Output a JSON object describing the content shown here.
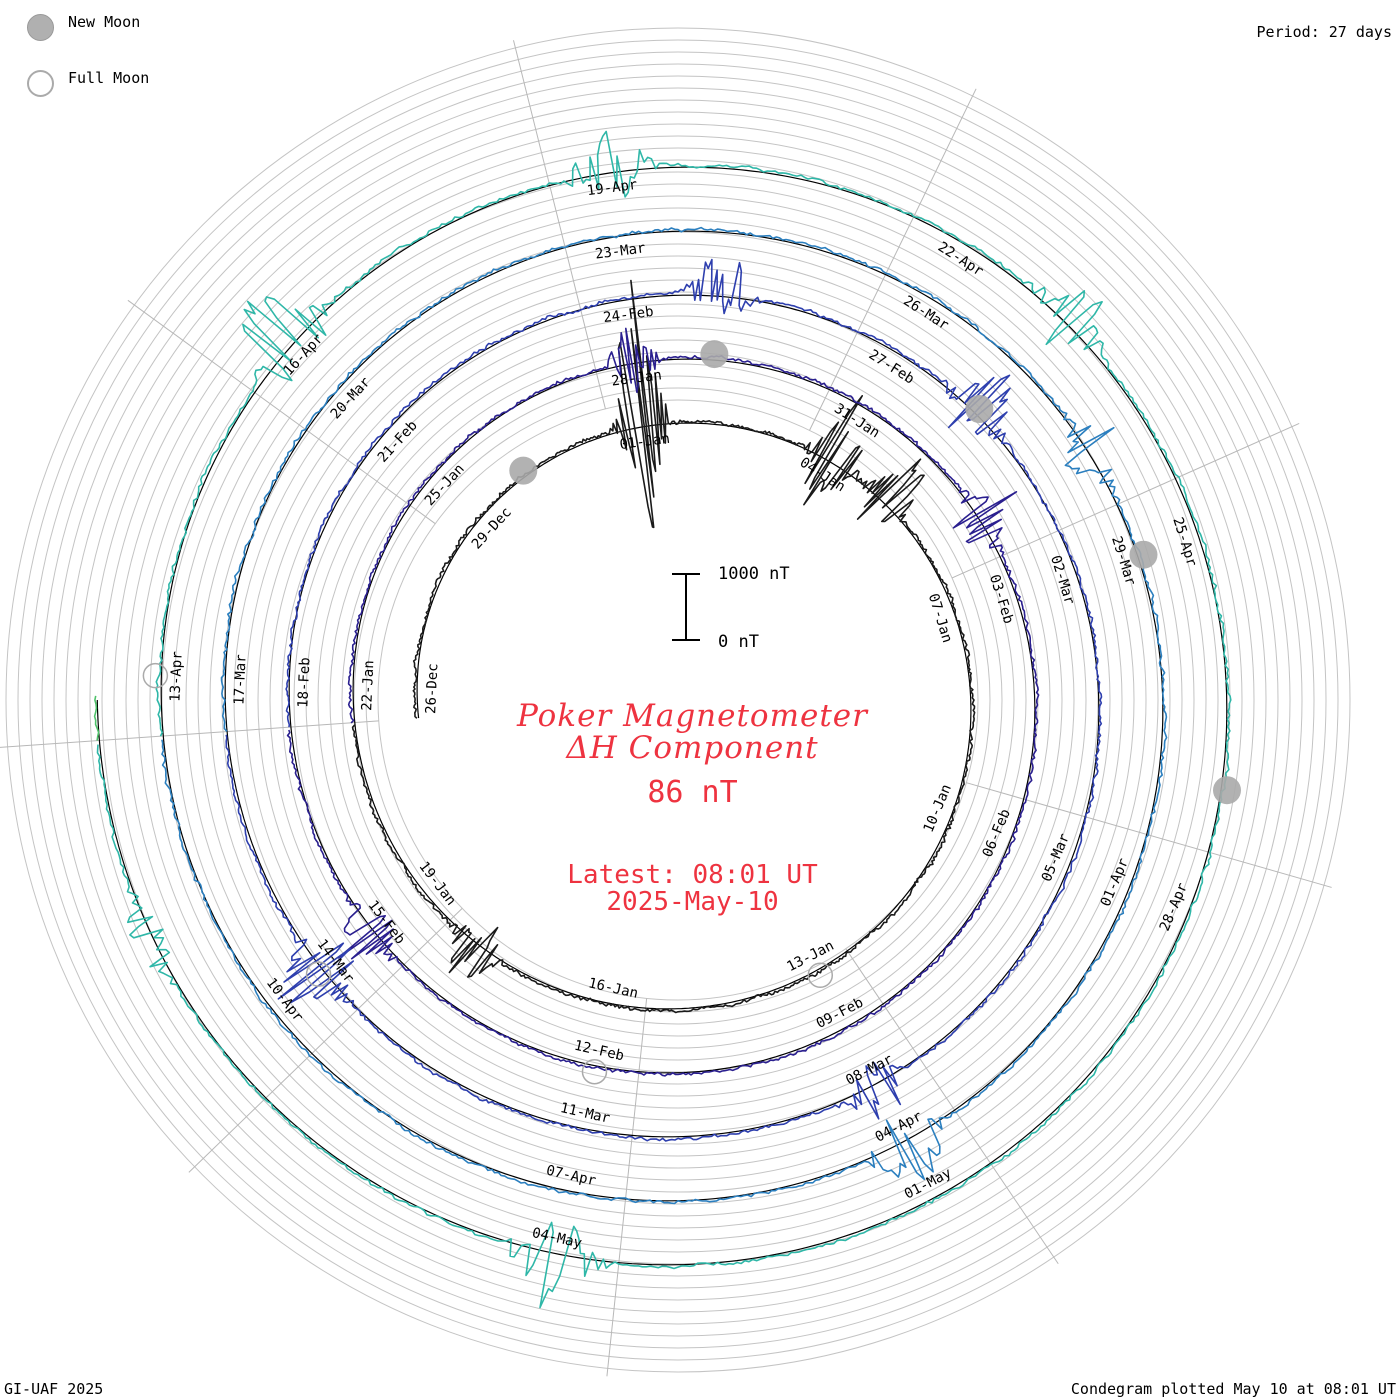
{
  "header": {
    "period": "Period: 27 days",
    "legend": {
      "new_moon": "New Moon",
      "full_moon": "Full Moon"
    }
  },
  "footer": {
    "credit": "GI-UAF 2025",
    "plotted": "Condegram plotted May 10 at 08:01 UT"
  },
  "center": {
    "title_line1": "Poker Magnetometer",
    "title_line2": "ΔH Component",
    "value": "86 nT",
    "latest": "Latest: 08:01 UT",
    "date": "2025-May-10"
  },
  "scale_bar": {
    "top_label": "1000 nT",
    "bottom_label": "0 nT"
  },
  "chart_data": {
    "type": "line",
    "title": "Poker Magnetometer ΔH Component",
    "projection": "spiral condegram",
    "period_days": 27,
    "start": "2024-12-26",
    "end": "2025-05-10 08:01 UT",
    "current_value_nT": 86,
    "scale_bar_nT": [
      0,
      1000
    ],
    "grid": true,
    "series_colors": [
      "#1a1a1a",
      "#2a1f8f",
      "#2e3fae",
      "#2b7fbf",
      "#2fb7a8",
      "#4ec26a",
      "#8ec830",
      "#c8b62a",
      "#d8921e",
      "#c8401e"
    ],
    "date_labels": [
      "26-Dec",
      "29-Dec",
      "01-Jan",
      "04-Jan",
      "07-Jan",
      "10-Jan",
      "13-Jan",
      "16-Jan",
      "19-Jan",
      "22-Jan",
      "25-Jan",
      "28-Jan",
      "31-Jan",
      "03-Feb",
      "06-Feb",
      "09-Feb",
      "12-Feb",
      "15-Feb",
      "18-Feb",
      "21-Feb",
      "24-Feb",
      "27-Feb",
      "02-Mar",
      "05-Mar",
      "08-Mar",
      "11-Mar",
      "14-Mar",
      "17-Mar",
      "20-Mar",
      "23-Mar",
      "26-Mar",
      "29-Mar",
      "01-Apr",
      "04-Apr",
      "07-Apr",
      "10-Apr",
      "13-Apr",
      "16-Apr",
      "19-Apr",
      "22-Apr",
      "25-Apr",
      "28-Apr",
      "01-May",
      "04-May"
    ],
    "new_moons": [
      "2024-12-30",
      "2025-01-29",
      "2025-02-28",
      "2025-03-29",
      "2025-04-27"
    ],
    "full_moons": [
      "2025-01-13",
      "2025-02-12",
      "2025-03-14",
      "2025-04-13"
    ],
    "disturbances": [
      {
        "date": "2025-01-01",
        "peak_nT": 1700
      },
      {
        "date": "2025-01-04",
        "peak_nT": 900
      },
      {
        "date": "2025-01-05",
        "peak_nT": 650
      },
      {
        "date": "2025-01-18",
        "peak_nT": 500
      },
      {
        "date": "2025-01-28",
        "peak_nT": 450
      },
      {
        "date": "2025-02-02",
        "peak_nT": 500
      },
      {
        "date": "2025-02-15",
        "peak_nT": 450
      },
      {
        "date": "2025-02-25",
        "peak_nT": 500
      },
      {
        "date": "2025-02-28",
        "peak_nT": 550
      },
      {
        "date": "2025-03-08",
        "peak_nT": 400
      },
      {
        "date": "2025-03-14",
        "peak_nT": 550
      },
      {
        "date": "2025-03-28",
        "peak_nT": 400
      },
      {
        "date": "2025-04-04",
        "peak_nT": 500
      },
      {
        "date": "2025-04-16",
        "peak_nT": 800
      },
      {
        "date": "2025-04-19",
        "peak_nT": 450
      },
      {
        "date": "2025-04-23",
        "peak_nT": 450
      },
      {
        "date": "2025-05-04",
        "peak_nT": 550
      },
      {
        "date": "2025-05-08",
        "peak_nT": 250
      }
    ]
  }
}
